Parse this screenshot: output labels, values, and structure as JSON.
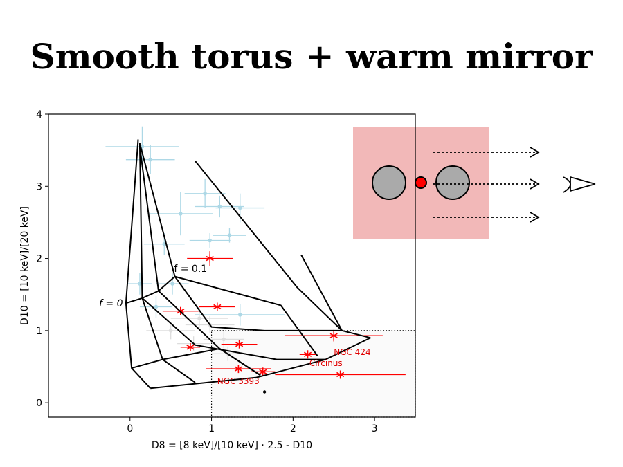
{
  "slide": {
    "title": "Smooth torus + warm mirror"
  },
  "colors": {
    "highlight": "#ff0000",
    "sample": "#add8e6",
    "background_sample": "#dddddd",
    "grid": "#000000",
    "torus_box": "#f2b8b8",
    "blob": "#aaaaaa",
    "source": "#ff0000"
  },
  "chart_data": {
    "type": "scatter",
    "xlabel": "D8 = [8 keV]/[10 keV] · 2.5 - D10",
    "ylabel": "D10 = [10 keV]/[20 keV]",
    "xlim": [
      -1.0,
      3.5
    ],
    "ylim": [
      -0.2,
      4.0
    ],
    "xticks": [
      "0",
      "1",
      "2",
      "3"
    ],
    "yticks": [
      "0",
      "1",
      "2",
      "3",
      "4"
    ],
    "annotations": {
      "f0": "f = 0",
      "f01": "f = 0.1"
    },
    "dotted_box": {
      "x": [
        1.0,
        3.5
      ],
      "y": [
        -0.2,
        1.0
      ]
    },
    "model_grid": [
      [
        [
          0.1,
          3.65
        ],
        [
          -0.05,
          1.38
        ],
        [
          0.02,
          0.48
        ],
        [
          0.25,
          0.2
        ]
      ],
      [
        [
          0.12,
          3.6
        ],
        [
          0.15,
          1.45
        ],
        [
          0.4,
          0.6
        ],
        [
          0.8,
          0.28
        ]
      ],
      [
        [
          0.12,
          3.55
        ],
        [
          0.35,
          1.55
        ],
        [
          1.1,
          0.75
        ],
        [
          1.6,
          0.38
        ]
      ],
      [
        [
          0.13,
          3.55
        ],
        [
          0.55,
          1.75
        ],
        [
          1.85,
          1.35
        ],
        [
          2.3,
          0.65
        ]
      ],
      [
        [
          0.8,
          3.35
        ],
        [
          2.05,
          1.6
        ],
        [
          2.6,
          1.0
        ],
        [
          2.95,
          0.9
        ]
      ],
      [
        [
          -0.05,
          1.38
        ],
        [
          0.15,
          1.45
        ],
        [
          0.35,
          1.55
        ],
        [
          0.55,
          1.75
        ]
      ],
      [
        [
          0.02,
          0.48
        ],
        [
          0.4,
          0.6
        ],
        [
          1.1,
          0.75
        ],
        [
          1.6,
          0.38
        ]
      ],
      [
        [
          0.25,
          0.2
        ],
        [
          1.55,
          0.35
        ],
        [
          2.4,
          0.6
        ],
        [
          2.95,
          0.9
        ]
      ],
      [
        [
          0.55,
          1.75
        ],
        [
          1.0,
          1.05
        ],
        [
          1.65,
          1.0
        ],
        [
          2.6,
          1.0
        ]
      ],
      [
        [
          0.15,
          1.45
        ],
        [
          0.8,
          0.8
        ],
        [
          1.8,
          0.6
        ],
        [
          2.4,
          0.6
        ]
      ],
      [
        [
          2.1,
          2.05
        ],
        [
          2.6,
          1.0
        ]
      ]
    ],
    "series": [
      {
        "color": "#add8e6",
        "marker": "dot",
        "points": [
          {
            "x": 0.15,
            "y": 3.55,
            "xerr": 0.45,
            "yerr": 0.28
          },
          {
            "x": 0.25,
            "y": 3.37,
            "xerr": 0.3,
            "yerr": 0.2
          },
          {
            "x": 0.92,
            "y": 2.9,
            "xerr": 0.25,
            "yerr": 0.2
          },
          {
            "x": 1.1,
            "y": 2.72,
            "xerr": 0.3,
            "yerr": 0.15
          },
          {
            "x": 1.35,
            "y": 2.7,
            "xerr": 0.3,
            "yerr": 0.2
          },
          {
            "x": 0.62,
            "y": 2.62,
            "xerr": 0.4,
            "yerr": 0.3
          },
          {
            "x": 0.98,
            "y": 2.25,
            "xerr": 0.25,
            "yerr": 0.1
          },
          {
            "x": 1.22,
            "y": 2.32,
            "xerr": 0.2,
            "yerr": 0.1
          },
          {
            "x": 0.42,
            "y": 2.2,
            "xerr": 0.25,
            "yerr": 0.15
          },
          {
            "x": 0.12,
            "y": 1.65,
            "xerr": 0.15,
            "yerr": 0.15
          },
          {
            "x": 0.52,
            "y": 1.65,
            "xerr": 0.2,
            "yerr": 0.15
          },
          {
            "x": 0.32,
            "y": 1.33,
            "xerr": 0.2,
            "yerr": 0.15
          },
          {
            "x": 1.35,
            "y": 1.22,
            "xerr": 0.55,
            "yerr": 0.15
          }
        ]
      },
      {
        "color": "#dddddd",
        "marker": "dot",
        "points": [
          {
            "x": 0.85,
            "y": 1.17,
            "xerr": 0.35,
            "yerr": 0.15
          },
          {
            "x": 0.98,
            "y": 1.08,
            "xerr": 0.3,
            "yerr": 0.12
          },
          {
            "x": 0.5,
            "y": 1.0,
            "xerr": 0.3,
            "yerr": 0.12
          },
          {
            "x": 1.15,
            "y": 0.88,
            "xerr": 0.25,
            "yerr": 0.12
          },
          {
            "x": 0.78,
            "y": 0.82,
            "xerr": 0.2,
            "yerr": 0.1
          },
          {
            "x": 1.2,
            "y": 0.68,
            "xerr": 0.2,
            "yerr": 0.1
          }
        ]
      },
      {
        "color": "#ff0000",
        "marker": "asterisk",
        "points": [
          {
            "x": 0.98,
            "y": 2.0,
            "xerr": 0.28,
            "yerr": 0.1
          },
          {
            "x": 0.62,
            "y": 1.27,
            "xerr": 0.22,
            "yerr": 0.0
          },
          {
            "x": 1.07,
            "y": 1.33,
            "xerr": 0.22,
            "yerr": 0.0
          },
          {
            "x": 0.74,
            "y": 0.77,
            "xerr": 0.12,
            "yerr": 0.0
          },
          {
            "x": 1.34,
            "y": 0.81,
            "xerr": 0.22,
            "yerr": 0.0
          },
          {
            "x": 2.5,
            "y": 0.93,
            "xerr": 0.6,
            "yerr": 0.08
          },
          {
            "x": 2.18,
            "y": 0.67,
            "xerr": 0.1,
            "yerr": 0.0
          },
          {
            "x": 1.33,
            "y": 0.47,
            "xerr": 0.4,
            "yerr": 0.0
          },
          {
            "x": 1.63,
            "y": 0.43,
            "xerr": 0.15,
            "yerr": 0.0
          },
          {
            "x": 2.58,
            "y": 0.39,
            "xerr": 0.8,
            "yerr": 0.0
          }
        ]
      }
    ],
    "extra_points": [
      {
        "x": 1.65,
        "y": 0.15
      }
    ],
    "source_labels": [
      {
        "text": "NGC 424",
        "x": 2.5,
        "y": 0.7
      },
      {
        "text": "Circinus",
        "x": 2.2,
        "y": 0.55
      },
      {
        "text": "NGC 3393",
        "x": 1.07,
        "y": 0.3
      }
    ]
  }
}
